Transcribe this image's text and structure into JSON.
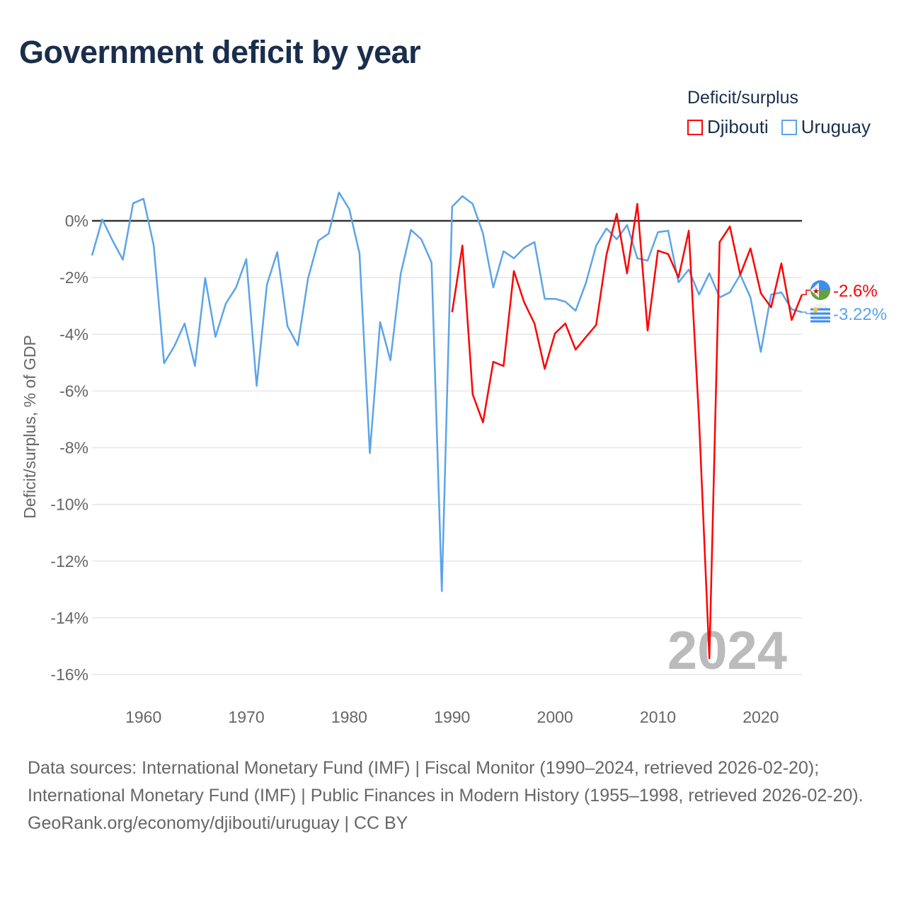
{
  "title": "Government deficit by year",
  "legend": {
    "title": "Deficit/surplus",
    "items": [
      {
        "name": "Djibouti",
        "color": "#ff0000"
      },
      {
        "name": "Uruguay",
        "color": "#5ba4ea"
      }
    ]
  },
  "footer": {
    "sources": "Data sources: International Monetary Fund (IMF) | Fiscal Monitor (1990–2024, retrieved 2026-02-20); International Monetary Fund (IMF) | Public Finances in Modern History (1955–1998, retrieved 2026-02-20).",
    "credit": "GeoRank.org/economy/djibouti/uruguay | CC BY"
  },
  "chart_data": {
    "type": "line",
    "title": "Government deficit by year",
    "xlabel": "",
    "ylabel": "Deficit/surplus, % of GDP",
    "xlim": [
      1955,
      2024
    ],
    "ylim": [
      -16,
      0
    ],
    "yticks": [
      0,
      -2,
      -4,
      -6,
      -8,
      -10,
      -12,
      -14,
      -16
    ],
    "ytick_labels": [
      "0%",
      "-2%",
      "-4%",
      "-6%",
      "-8%",
      "-10%",
      "-12%",
      "-14%",
      "-16%"
    ],
    "xticks": [
      1960,
      1970,
      1980,
      1990,
      2000,
      2010,
      2020
    ],
    "xtick_labels": [
      "1960",
      "1970",
      "1980",
      "1990",
      "2000",
      "2010",
      "2020"
    ],
    "grid": true,
    "year_watermark": "2024",
    "series": [
      {
        "name": "Djibouti",
        "color": "#ff0000",
        "end_label": "-2.6%",
        "start_year": 1990,
        "values": [
          -3.22,
          -0.87,
          -6.12,
          -7.11,
          -4.97,
          -5.12,
          -1.77,
          -2.87,
          -3.62,
          -5.22,
          -3.97,
          -3.62,
          -4.54,
          -4.1,
          -3.67,
          -1.2,
          0.25,
          -1.85,
          0.6,
          -3.87,
          -1.05,
          -1.17,
          -2.0,
          -0.35,
          -7.0,
          -15.43,
          -0.75,
          -0.2,
          -1.9,
          -0.97,
          -2.55,
          -3.05,
          -1.5,
          -3.5,
          -2.6
        ]
      },
      {
        "name": "Uruguay",
        "color": "#5ba4ea",
        "end_label": "-3.22%",
        "start_year": 1955,
        "values": [
          -1.22,
          0.05,
          -0.7,
          -1.37,
          0.62,
          0.78,
          -0.87,
          -5.02,
          -4.42,
          -3.62,
          -5.12,
          -2.02,
          -4.09,
          -2.92,
          -2.35,
          -1.35,
          -5.82,
          -2.25,
          -1.1,
          -3.72,
          -4.39,
          -2.02,
          -0.7,
          -0.45,
          1.0,
          0.42,
          -1.15,
          -8.19,
          -3.57,
          -4.92,
          -1.87,
          -0.32,
          -0.65,
          -1.47,
          -13.06,
          0.5,
          0.87,
          0.6,
          -0.45,
          -2.35,
          -1.07,
          -1.32,
          -0.95,
          -0.75,
          -2.75,
          -2.75,
          -2.85,
          -3.17,
          -2.2,
          -0.87,
          -0.27,
          -0.65,
          -0.15,
          -1.32,
          -1.4,
          -0.4,
          -0.35,
          -2.17,
          -1.72,
          -2.6,
          -1.85,
          -2.7,
          -2.52,
          -1.9,
          -2.7,
          -4.62,
          -2.6,
          -2.52,
          -3.12,
          -3.22
        ]
      }
    ]
  }
}
